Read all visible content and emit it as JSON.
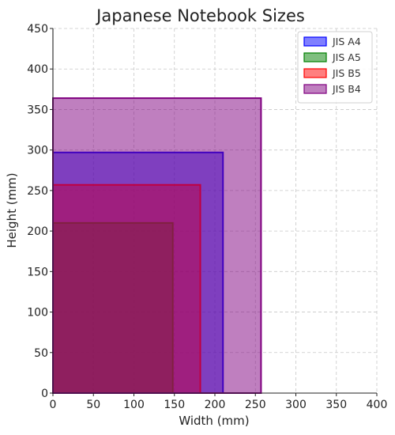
{
  "chart_data": {
    "type": "rectangle-area",
    "title": "Japanese Notebook Sizes",
    "xlabel": "Width (mm)",
    "ylabel": "Height (mm)",
    "xlim": [
      0,
      400
    ],
    "ylim": [
      0,
      450
    ],
    "xticks": [
      0,
      50,
      100,
      150,
      200,
      250,
      300,
      350,
      400
    ],
    "yticks": [
      0,
      50,
      100,
      150,
      200,
      250,
      300,
      350,
      400,
      450
    ],
    "grid": true,
    "legend_position": "top-right",
    "series": [
      {
        "name": "JIS A4",
        "width": 210,
        "height": 297,
        "fill": "#0000ff",
        "edge": "#0000ff"
      },
      {
        "name": "JIS A5",
        "width": 148,
        "height": 210,
        "fill": "#008000",
        "edge": "#008000"
      },
      {
        "name": "JIS B5",
        "width": 182,
        "height": 257,
        "fill": "#ff0000",
        "edge": "#ff0000"
      },
      {
        "name": "JIS B4",
        "width": 257,
        "height": 364,
        "fill": "#800080",
        "edge": "#800080"
      }
    ]
  }
}
